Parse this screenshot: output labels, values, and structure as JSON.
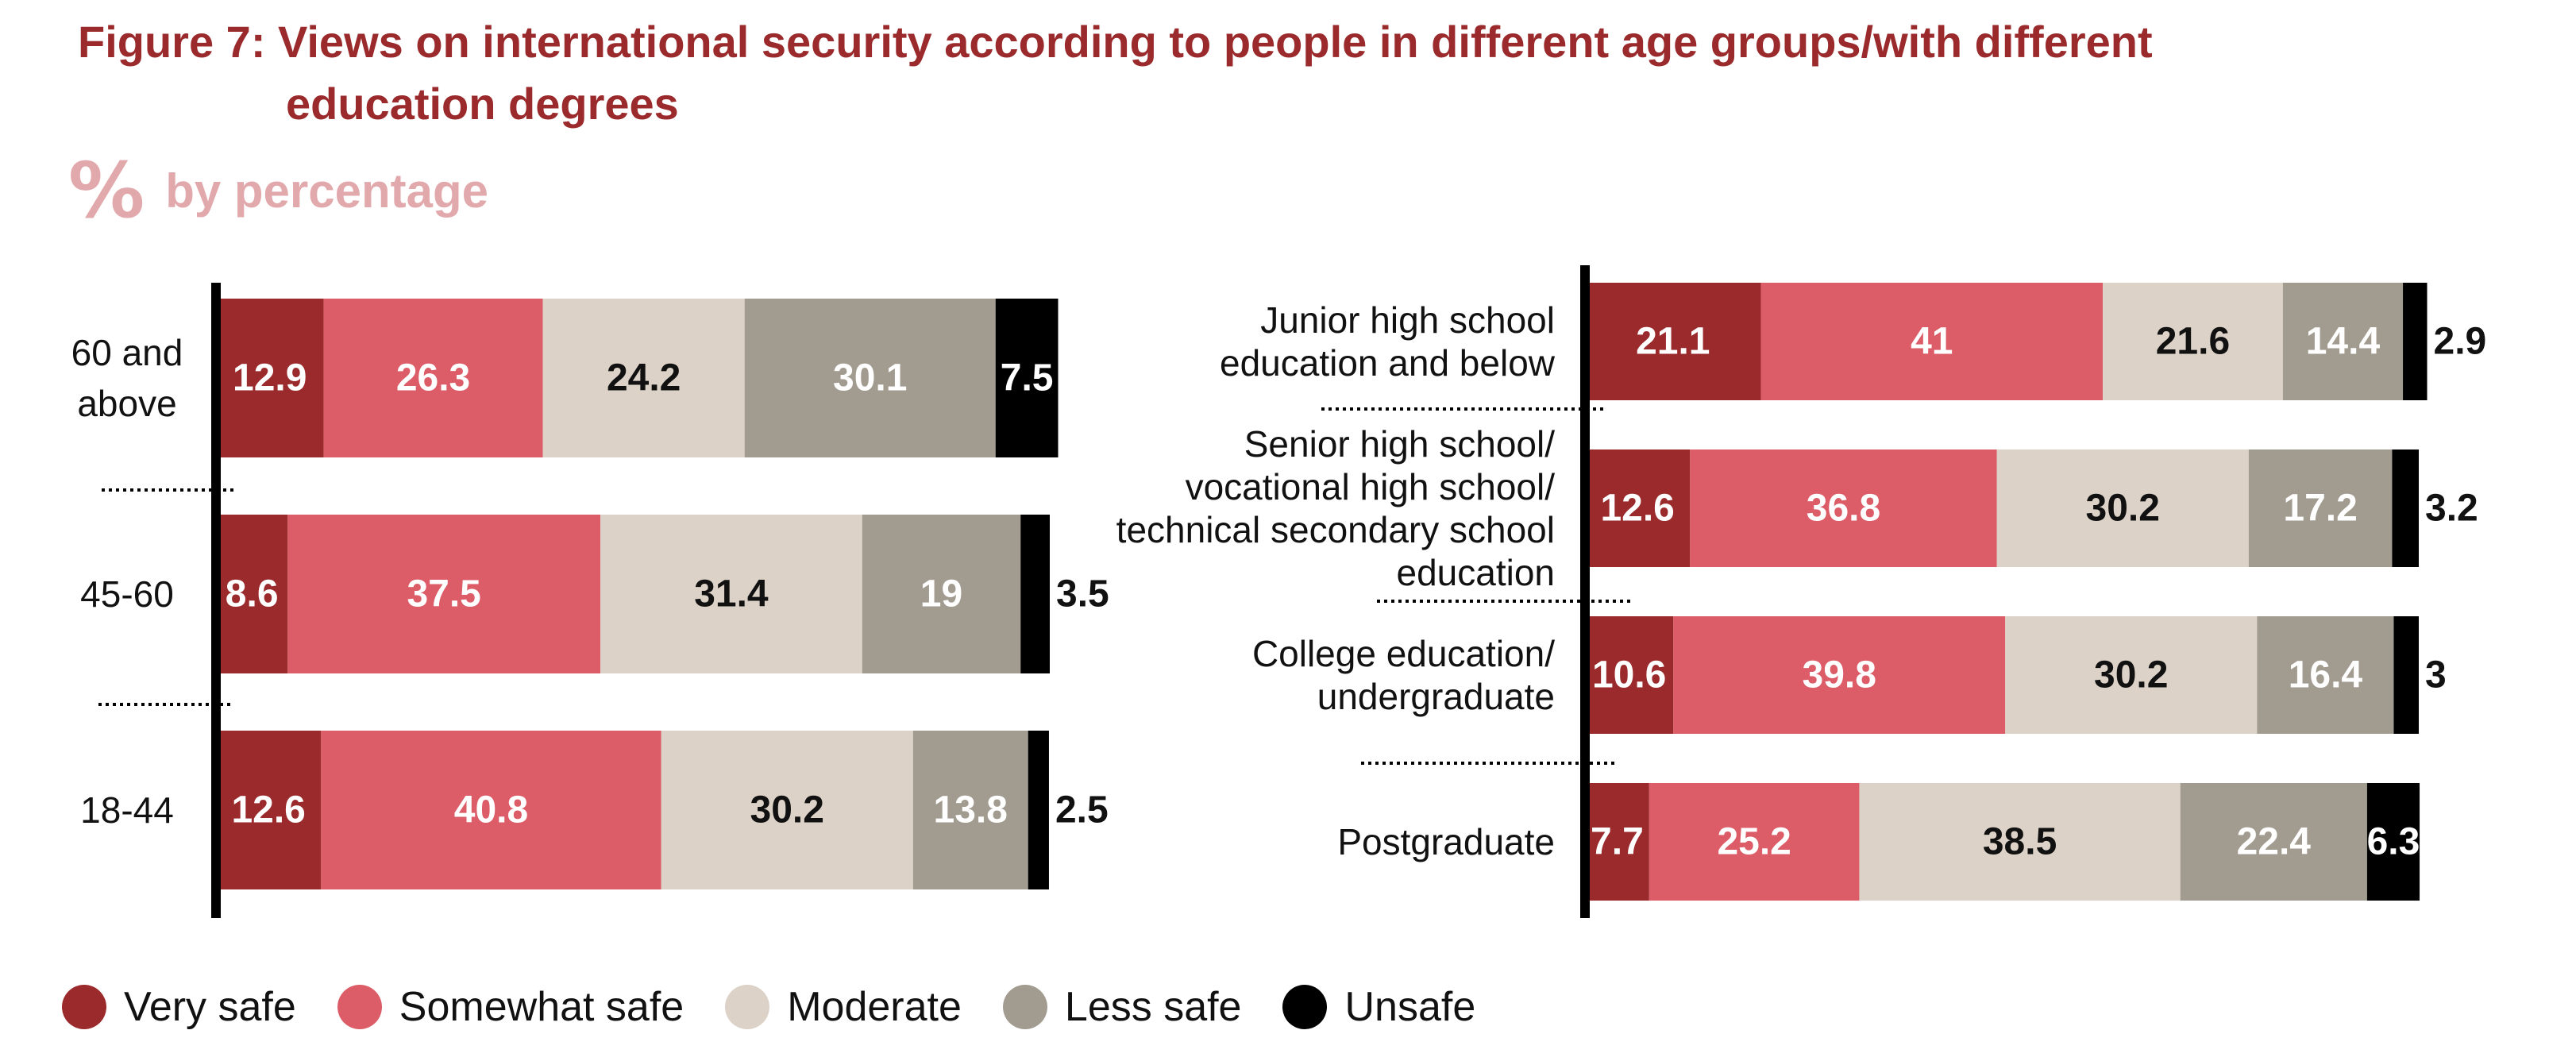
{
  "title": {
    "line1": "Figure 7: Views on international security according to people in different age groups/with different",
    "line2": "education degrees"
  },
  "subtitle": {
    "icon": "%",
    "text": "by percentage"
  },
  "legend": [
    {
      "name": "Very safe",
      "color": "#9b2a2c"
    },
    {
      "name": "Somewhat safe",
      "color": "#dc5c68"
    },
    {
      "name": "Moderate",
      "color": "#dcd2c7"
    },
    {
      "name": "Less safe",
      "color": "#a29c90"
    },
    {
      "name": "Unsafe",
      "color": "#000000"
    }
  ],
  "chart_data": [
    {
      "type": "bar",
      "stacked": true,
      "orientation": "horizontal",
      "categories": [
        [
          "60 and",
          "above"
        ],
        [
          "45-60"
        ],
        [
          "18-44"
        ]
      ],
      "series": [
        {
          "name": "Very safe",
          "values": [
            12.9,
            8.6,
            12.6
          ]
        },
        {
          "name": "Somewhat safe",
          "values": [
            26.3,
            37.5,
            40.8
          ]
        },
        {
          "name": "Moderate",
          "values": [
            24.2,
            31.4,
            30.2
          ]
        },
        {
          "name": "Less safe",
          "values": [
            30.1,
            19,
            13.8
          ]
        },
        {
          "name": "Unsafe",
          "values": [
            7.5,
            3.5,
            2.5
          ]
        }
      ]
    },
    {
      "type": "bar",
      "stacked": true,
      "orientation": "horizontal",
      "categories": [
        [
          "Junior high school",
          "education and below"
        ],
        [
          "Senior high school/",
          "vocational high school/",
          "technical secondary school",
          "education"
        ],
        [
          "College education/",
          "undergraduate"
        ],
        [
          "Postgraduate"
        ]
      ],
      "series": [
        {
          "name": "Very safe",
          "values": [
            21.1,
            12.6,
            10.6,
            7.7
          ]
        },
        {
          "name": "Somewhat safe",
          "values": [
            41,
            36.8,
            39.8,
            25.2
          ]
        },
        {
          "name": "Moderate",
          "values": [
            21.6,
            30.2,
            30.2,
            38.5
          ]
        },
        {
          "name": "Less safe",
          "values": [
            14.4,
            17.2,
            16.4,
            22.4
          ]
        },
        {
          "name": "Unsafe",
          "values": [
            2.9,
            3.2,
            3,
            6.3
          ]
        }
      ]
    }
  ]
}
